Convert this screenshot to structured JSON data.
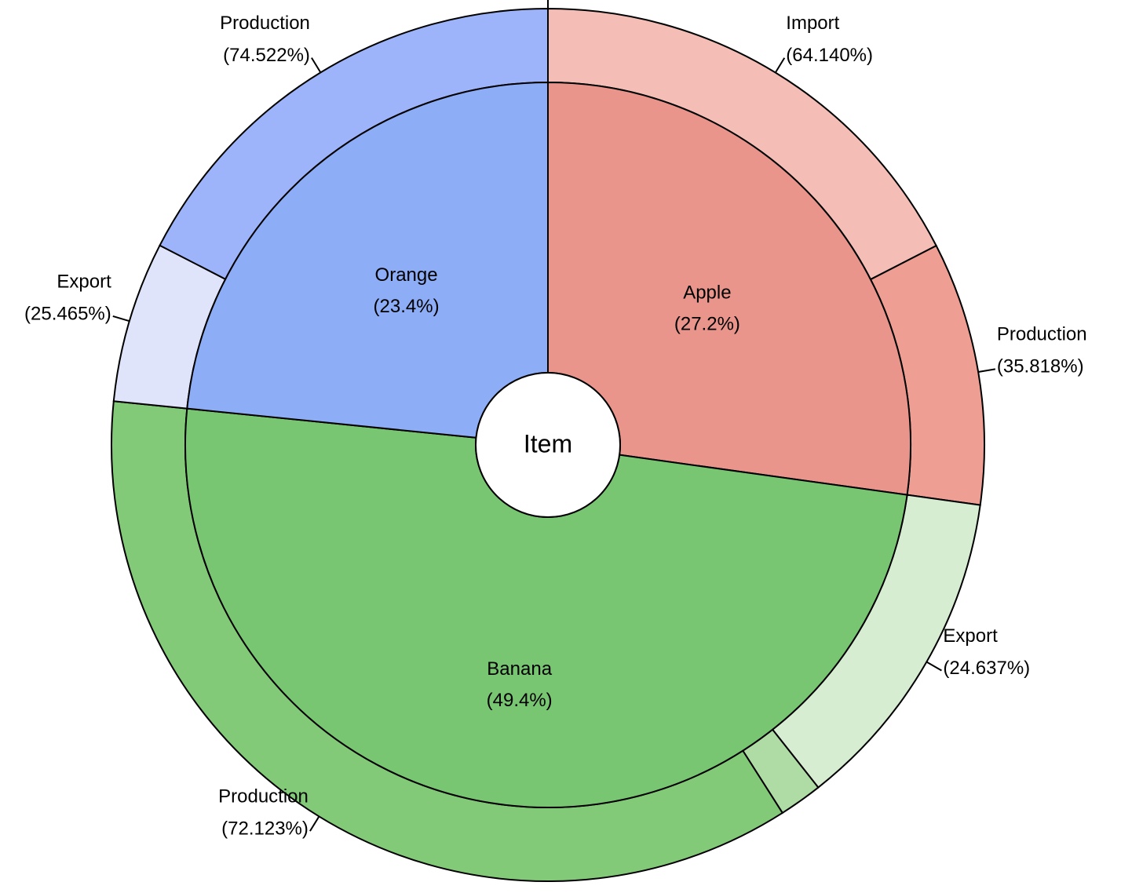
{
  "chart_data": {
    "type": "sunburst",
    "center_label": "Item",
    "inner_ring": [
      {
        "name": "Apple",
        "percent_text": "(27.2%)",
        "value": 27.2,
        "color": "#EA958B"
      },
      {
        "name": "Banana",
        "percent_text": "(49.4%)",
        "value": 49.4,
        "color": "#78C672"
      },
      {
        "name": "Orange",
        "percent_text": "(23.4%)",
        "value": 23.4,
        "color": "#8DADF7"
      }
    ],
    "outer_ring": [
      {
        "parent": "Apple",
        "name": "Import",
        "percent_text": "(64.140%)",
        "value": 64.14,
        "color": "#F4BDB6",
        "labeled": true
      },
      {
        "parent": "Apple",
        "name": "Production",
        "percent_text": "(35.818%)",
        "value": 35.818,
        "color": "#EF9E94",
        "labeled": true
      },
      {
        "parent": "Banana",
        "name": "Export",
        "percent_text": "(24.637%)",
        "value": 24.637,
        "color": "#D6EDD2",
        "labeled": true
      },
      {
        "parent": "Banana",
        "name": "",
        "percent_text": "",
        "value": 3.24,
        "color": "#AEDCA4",
        "labeled": false
      },
      {
        "parent": "Banana",
        "name": "Production",
        "percent_text": "(72.123%)",
        "value": 72.123,
        "color": "#82CA77",
        "labeled": true
      },
      {
        "parent": "Orange",
        "name": "Export",
        "percent_text": "(25.465%)",
        "value": 25.465,
        "color": "#DFE4FB",
        "labeled": true
      },
      {
        "parent": "Orange",
        "name": "Production",
        "percent_text": "(74.522%)",
        "value": 74.522,
        "color": "#9DB4FA",
        "labeled": true
      }
    ]
  }
}
